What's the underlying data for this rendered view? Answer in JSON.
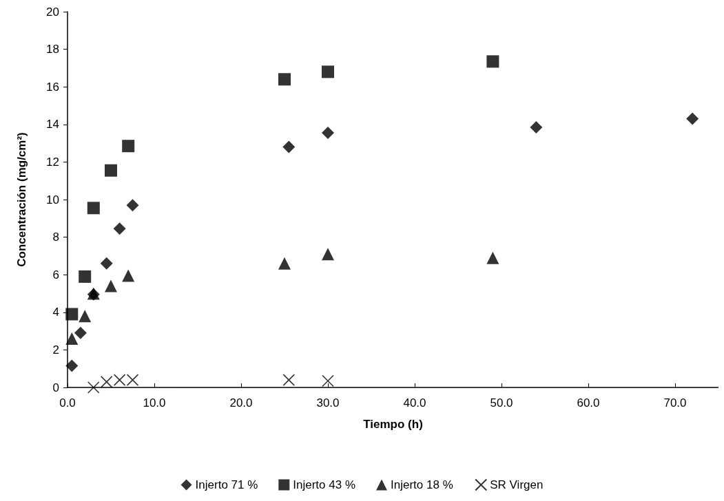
{
  "chart_data": {
    "type": "scatter",
    "xlabel": "Tiempo (h)",
    "ylabel": "Concentración (mg/cm²)",
    "xlim": [
      0,
      75
    ],
    "xticks": [
      {
        "value": 0,
        "label": "0.0"
      },
      {
        "value": 10,
        "label": "10.0"
      },
      {
        "value": 20,
        "label": "20.0"
      },
      {
        "value": 30,
        "label": "30.0"
      },
      {
        "value": 40,
        "label": "40.0"
      },
      {
        "value": 50,
        "label": "50.0"
      },
      {
        "value": 60,
        "label": "60.0"
      },
      {
        "value": 70,
        "label": "70.0"
      }
    ],
    "ylim": [
      0,
      20
    ],
    "yticks": [
      0,
      2,
      4,
      6,
      8,
      10,
      12,
      14,
      16,
      18,
      20
    ],
    "grid": false,
    "legend": "bottom",
    "series": [
      {
        "name": "Injerto 71 %",
        "color": "#000000",
        "marker": "diamond",
        "x": [
          0.5,
          1.5,
          3,
          4.5,
          6,
          7.5,
          25.5,
          30,
          54,
          72
        ],
        "values": [
          1.15,
          2.9,
          4.95,
          6.6,
          8.45,
          9.7,
          12.8,
          13.55,
          13.85,
          14.3
        ]
      },
      {
        "name": "Injerto 43 %",
        "color": "#000000",
        "marker": "square",
        "x": [
          0.5,
          2,
          3,
          5,
          7,
          25,
          30,
          49
        ],
        "values": [
          3.9,
          5.9,
          9.55,
          11.55,
          12.85,
          16.4,
          16.8,
          17.35
        ]
      },
      {
        "name": "Injerto 18 %",
        "color": "#000000",
        "marker": "triangle",
        "x": [
          0.5,
          2,
          3,
          5,
          7,
          25,
          30,
          49
        ],
        "values": [
          2.6,
          3.8,
          5.0,
          5.4,
          5.95,
          6.6,
          7.1,
          6.9
        ]
      },
      {
        "name": "SR Virgen",
        "color": "#000000",
        "marker": "cross",
        "x": [
          3,
          4.5,
          6,
          7.5,
          25.5,
          30
        ],
        "values": [
          0.0,
          0.3,
          0.4,
          0.4,
          0.4,
          0.35
        ]
      }
    ]
  }
}
